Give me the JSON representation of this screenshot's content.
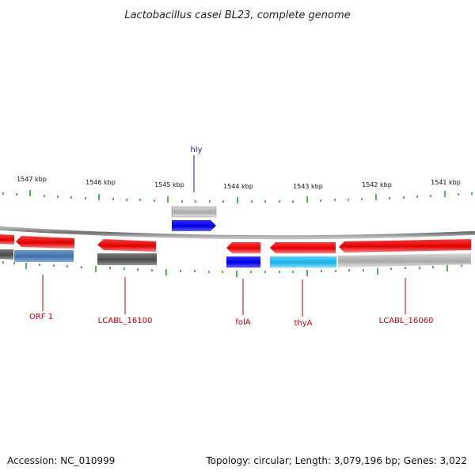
{
  "title": "Lactobacillus casei BL23, complete genome",
  "kbp_ticks": [
    "1547 kbp",
    "1546 kbp",
    "1545 kbp",
    "1544 kbp",
    "1543 kbp",
    "1542 kbp",
    "1541 kbp"
  ],
  "gene_labels": {
    "hly": "hly",
    "orf1": "ORF 1",
    "lcabl16100": "LCABL_16100",
    "fola": "folA",
    "thya": "thyA",
    "lcabl16060": "LCABL_16060"
  },
  "colors": {
    "red": "#ee0000",
    "blue": "#0000ee",
    "cyan": "#22bbee",
    "steelblue": "#4a7fb5",
    "darkgray": "#555555",
    "lightgray": "#b8b8b8",
    "tick": "#1a8a1a",
    "backbone": "#888888"
  },
  "footer": {
    "accession": "Accession: NC_010999",
    "topology": "Topology: circular; Length: 3,079,196 bp; Genes: 3,022"
  }
}
